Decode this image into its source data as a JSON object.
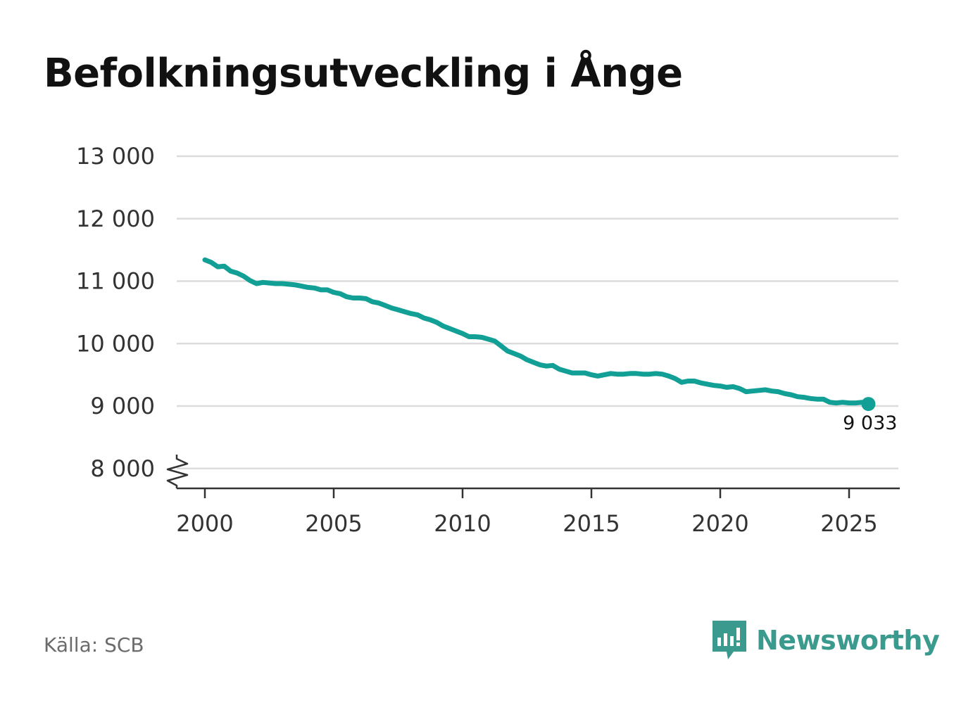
{
  "chart_data": {
    "type": "line",
    "title": "Befolkningsutveckling i Ånge",
    "xlabel": "",
    "ylabel": "",
    "xlim": [
      1999,
      2027
    ],
    "ylim": [
      7700,
      13000
    ],
    "y_ticks": [
      {
        "value": 13000,
        "label": "13 000"
      },
      {
        "value": 12000,
        "label": "12 000"
      },
      {
        "value": 11000,
        "label": "11 000"
      },
      {
        "value": 10000,
        "label": "10 000"
      },
      {
        "value": 9000,
        "label": "9 000"
      },
      {
        "value": 8000,
        "label": "8 000"
      }
    ],
    "x_ticks": [
      {
        "value": 2000,
        "label": "2000"
      },
      {
        "value": 2005,
        "label": "2005"
      },
      {
        "value": 2010,
        "label": "2010"
      },
      {
        "value": 2015,
        "label": "2015"
      },
      {
        "value": 2020,
        "label": "2020"
      },
      {
        "value": 2025,
        "label": "2025"
      }
    ],
    "axis_break": true,
    "grid": true,
    "line_color": "#12a096",
    "series": [
      {
        "points": [
          [
            2000.0,
            11340
          ],
          [
            2000.25,
            11300
          ],
          [
            2000.5,
            11230
          ],
          [
            2000.75,
            11240
          ],
          [
            2001.0,
            11160
          ],
          [
            2001.25,
            11130
          ],
          [
            2001.5,
            11080
          ],
          [
            2001.75,
            11010
          ],
          [
            2002.0,
            10960
          ],
          [
            2002.25,
            10980
          ],
          [
            2002.5,
            10970
          ],
          [
            2002.75,
            10960
          ],
          [
            2003.0,
            10960
          ],
          [
            2003.25,
            10950
          ],
          [
            2003.5,
            10940
          ],
          [
            2003.75,
            10920
          ],
          [
            2004.0,
            10900
          ],
          [
            2004.25,
            10890
          ],
          [
            2004.5,
            10860
          ],
          [
            2004.75,
            10860
          ],
          [
            2005.0,
            10820
          ],
          [
            2005.25,
            10800
          ],
          [
            2005.5,
            10750
          ],
          [
            2005.75,
            10730
          ],
          [
            2006.0,
            10730
          ],
          [
            2006.25,
            10720
          ],
          [
            2006.5,
            10670
          ],
          [
            2006.75,
            10650
          ],
          [
            2007.0,
            10610
          ],
          [
            2007.25,
            10570
          ],
          [
            2007.5,
            10540
          ],
          [
            2007.75,
            10510
          ],
          [
            2008.0,
            10480
          ],
          [
            2008.25,
            10460
          ],
          [
            2008.5,
            10410
          ],
          [
            2008.75,
            10380
          ],
          [
            2009.0,
            10340
          ],
          [
            2009.25,
            10280
          ],
          [
            2009.5,
            10240
          ],
          [
            2009.75,
            10200
          ],
          [
            2010.0,
            10160
          ],
          [
            2010.25,
            10110
          ],
          [
            2010.5,
            10110
          ],
          [
            2010.75,
            10100
          ],
          [
            2011.0,
            10070
          ],
          [
            2011.25,
            10040
          ],
          [
            2011.5,
            9960
          ],
          [
            2011.75,
            9880
          ],
          [
            2012.0,
            9840
          ],
          [
            2012.25,
            9800
          ],
          [
            2012.5,
            9740
          ],
          [
            2012.75,
            9700
          ],
          [
            2013.0,
            9660
          ],
          [
            2013.25,
            9640
          ],
          [
            2013.5,
            9650
          ],
          [
            2013.75,
            9590
          ],
          [
            2014.0,
            9560
          ],
          [
            2014.25,
            9530
          ],
          [
            2014.5,
            9530
          ],
          [
            2014.75,
            9530
          ],
          [
            2015.0,
            9500
          ],
          [
            2015.25,
            9480
          ],
          [
            2015.5,
            9500
          ],
          [
            2015.75,
            9520
          ],
          [
            2016.0,
            9510
          ],
          [
            2016.25,
            9510
          ],
          [
            2016.5,
            9520
          ],
          [
            2016.75,
            9520
          ],
          [
            2017.0,
            9510
          ],
          [
            2017.25,
            9510
          ],
          [
            2017.5,
            9520
          ],
          [
            2017.75,
            9510
          ],
          [
            2018.0,
            9480
          ],
          [
            2018.25,
            9440
          ],
          [
            2018.5,
            9380
          ],
          [
            2018.75,
            9400
          ],
          [
            2019.0,
            9400
          ],
          [
            2019.25,
            9370
          ],
          [
            2019.5,
            9350
          ],
          [
            2019.75,
            9330
          ],
          [
            2020.0,
            9320
          ],
          [
            2020.25,
            9300
          ],
          [
            2020.5,
            9310
          ],
          [
            2020.75,
            9280
          ],
          [
            2021.0,
            9230
          ],
          [
            2021.25,
            9240
          ],
          [
            2021.5,
            9250
          ],
          [
            2021.75,
            9260
          ],
          [
            2022.0,
            9240
          ],
          [
            2022.25,
            9230
          ],
          [
            2022.5,
            9200
          ],
          [
            2022.75,
            9180
          ],
          [
            2023.0,
            9150
          ],
          [
            2023.25,
            9140
          ],
          [
            2023.5,
            9120
          ],
          [
            2023.75,
            9110
          ],
          [
            2024.0,
            9110
          ],
          [
            2024.25,
            9060
          ],
          [
            2024.5,
            9050
          ],
          [
            2024.75,
            9060
          ],
          [
            2025.0,
            9050
          ],
          [
            2025.25,
            9050
          ],
          [
            2025.5,
            9060
          ],
          [
            2025.75,
            9033
          ]
        ]
      }
    ],
    "last_point_label": "9 033"
  },
  "footer": {
    "source": "Källa: SCB",
    "brand": "Newsworthy",
    "logo_icon": "bar-chart-speech-bubble-icon",
    "brand_color": "#3a9a8e"
  }
}
